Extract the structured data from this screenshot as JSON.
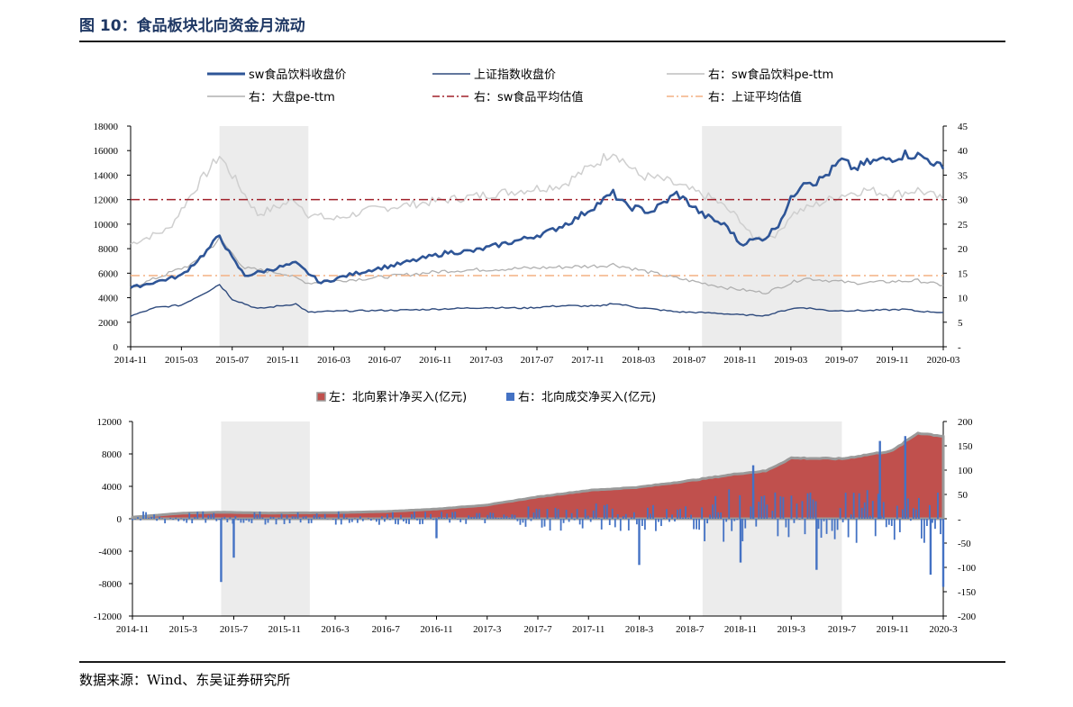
{
  "figure": {
    "title": "图 10：食品板块北向资金月流动",
    "source": "数据来源：Wind、东吴证券研究所"
  },
  "colors": {
    "sw_close": "#2e5597",
    "sh_close": "#2e4a7d",
    "sw_pe": "#cfcfcf",
    "mkt_pe": "#b0b0b0",
    "sw_avg": "#a0202a",
    "sh_avg": "#f4b183",
    "cum_fill": "#c0504d",
    "cum_edge": "#9a9a9a",
    "daily_bar": "#4472c4",
    "shade": "#ececec"
  },
  "chart_data": [
    {
      "type": "line",
      "legend": [
        {
          "name": "sw食品饮料收盘价",
          "style": "thick-line"
        },
        {
          "name": "上证指数收盘价",
          "style": "line"
        },
        {
          "name": "右：sw食品饮料pe-ttm",
          "style": "light-line"
        },
        {
          "name": "右：大盘pe-ttm",
          "style": "light-line"
        },
        {
          "name": "右：sw食品平均估值",
          "style": "dash-dot"
        },
        {
          "name": "右：上证平均估值",
          "style": "dash-dot"
        }
      ],
      "x_ticks": [
        "2014-11",
        "2015-03",
        "2015-07",
        "2015-11",
        "2016-03",
        "2016-07",
        "2016-11",
        "2017-03",
        "2017-07",
        "2017-11",
        "2018-03",
        "2018-07",
        "2018-11",
        "2019-03",
        "2019-07",
        "2019-11",
        "2020-03"
      ],
      "y_left_ticks": [
        "18000",
        "16000",
        "14000",
        "12000",
        "10000",
        "8000",
        "6000",
        "4000",
        "2000",
        "0"
      ],
      "y_right_ticks": [
        "45",
        "40",
        "35",
        "30",
        "25",
        "20",
        "15",
        "10",
        "5",
        "-"
      ],
      "ylim_left": [
        0,
        18000
      ],
      "ylim_right": [
        0,
        45
      ],
      "shaded_periods": [
        [
          "2015-06",
          "2016-01"
        ],
        [
          "2018-08",
          "2019-07"
        ]
      ],
      "series": [
        {
          "name": "sw食品饮料收盘价",
          "axis": "left",
          "x": [
            "2014-11",
            "2015-01",
            "2015-03",
            "2015-05",
            "2015-06",
            "2015-07",
            "2015-08",
            "2015-10",
            "2015-12",
            "2016-01",
            "2016-02",
            "2016-04",
            "2016-06",
            "2016-08",
            "2016-10",
            "2016-12",
            "2017-02",
            "2017-04",
            "2017-06",
            "2017-08",
            "2017-10",
            "2017-12",
            "2018-01",
            "2018-02",
            "2018-04",
            "2018-06",
            "2018-07",
            "2018-08",
            "2018-10",
            "2018-11",
            "2018-12",
            "2019-01",
            "2019-02",
            "2019-03",
            "2019-04",
            "2019-05",
            "2019-06",
            "2019-07",
            "2019-08",
            "2019-09",
            "2019-10",
            "2019-11",
            "2019-12",
            "2020-01",
            "2020-02",
            "2020-03"
          ],
          "values": [
            4800,
            5300,
            5800,
            7800,
            9100,
            7200,
            5800,
            6300,
            6800,
            6000,
            5200,
            5800,
            6300,
            6700,
            7200,
            7700,
            7800,
            8300,
            8800,
            9400,
            10400,
            11800,
            12500,
            11500,
            11000,
            12500,
            11700,
            10800,
            9800,
            8400,
            8700,
            8900,
            10000,
            12000,
            13600,
            13400,
            14200,
            15200,
            14500,
            15000,
            15200,
            15400,
            15700,
            15600,
            15200,
            14500
          ]
        },
        {
          "name": "上证指数收盘价",
          "axis": "left",
          "x": [
            "2014-11",
            "2015-01",
            "2015-03",
            "2015-05",
            "2015-06",
            "2015-07",
            "2015-09",
            "2015-12",
            "2016-01",
            "2016-03",
            "2016-06",
            "2016-09",
            "2016-12",
            "2017-03",
            "2017-06",
            "2017-09",
            "2017-12",
            "2018-01",
            "2018-03",
            "2018-06",
            "2018-09",
            "2018-11",
            "2019-01",
            "2019-03",
            "2019-04",
            "2019-06",
            "2019-09",
            "2019-12",
            "2020-01",
            "2020-03"
          ],
          "values": [
            2500,
            3200,
            3400,
            4500,
            5100,
            3900,
            3100,
            3500,
            2800,
            2900,
            2950,
            3000,
            3100,
            3200,
            3150,
            3350,
            3300,
            3550,
            3200,
            2850,
            2750,
            2600,
            2550,
            3100,
            3200,
            2950,
            2950,
            3050,
            2900,
            2800
          ]
        },
        {
          "name": "右：sw食品饮料pe-ttm",
          "axis": "right",
          "x": [
            "2014-11",
            "2015-02",
            "2015-04",
            "2015-06",
            "2015-07",
            "2015-09",
            "2015-11",
            "2015-12",
            "2016-01",
            "2016-03",
            "2016-06",
            "2016-09",
            "2016-12",
            "2017-03",
            "2017-06",
            "2017-09",
            "2017-12",
            "2018-01",
            "2018-03",
            "2018-05",
            "2018-07",
            "2018-09",
            "2018-11",
            "2018-12",
            "2019-02",
            "2019-03",
            "2019-05",
            "2019-07",
            "2019-09",
            "2019-11",
            "2020-01",
            "2020-03"
          ],
          "values": [
            21,
            24,
            32,
            39,
            35,
            27,
            29,
            30,
            27,
            26,
            28,
            29,
            30,
            31,
            32,
            33,
            38,
            40,
            35,
            34,
            32,
            30,
            26,
            22,
            23,
            27,
            29,
            31,
            32,
            31,
            32,
            30
          ]
        },
        {
          "name": "右：大盘pe-ttm",
          "axis": "right",
          "x": [
            "2014-11",
            "2015-02",
            "2015-04",
            "2015-06",
            "2015-08",
            "2015-11",
            "2016-01",
            "2016-06",
            "2016-12",
            "2017-06",
            "2017-12",
            "2018-01",
            "2018-06",
            "2018-10",
            "2019-01",
            "2019-04",
            "2019-08",
            "2020-01",
            "2020-03"
          ],
          "values": [
            12,
            15,
            17,
            22,
            16,
            15,
            13,
            14,
            15.5,
            16,
            16.5,
            16.8,
            14,
            12,
            11,
            14,
            13,
            13.5,
            12.5
          ]
        },
        {
          "name": "右：sw食品平均估值",
          "axis": "right",
          "values": [
            30
          ]
        },
        {
          "name": "右：上证平均估值",
          "axis": "right",
          "values": [
            14.5
          ]
        }
      ]
    },
    {
      "type": "bar",
      "legend": [
        {
          "name": "左：北向累计净买入(亿元)",
          "style": "area"
        },
        {
          "name": "右：北向成交净买入(亿元)",
          "style": "bar"
        }
      ],
      "x_ticks": [
        "2014-11",
        "2015-3",
        "2015-7",
        "2015-11",
        "2016-3",
        "2016-7",
        "2016-11",
        "2017-3",
        "2017-7",
        "2017-11",
        "2018-3",
        "2018-7",
        "2018-11",
        "2019-3",
        "2019-7",
        "2019-11",
        "2020-3"
      ],
      "y_left_ticks": [
        "12000",
        "8000",
        "4000",
        "0",
        "-4000",
        "-8000",
        "-12000"
      ],
      "y_right_ticks": [
        "200",
        "150",
        "100",
        "50",
        "-",
        "-50",
        "-100",
        "-150",
        "-200"
      ],
      "ylim_left": [
        -12000,
        12000
      ],
      "ylim_right": [
        -200,
        200
      ],
      "shaded_periods": [
        [
          "2015-06",
          "2016-01"
        ],
        [
          "2018-08",
          "2019-07"
        ]
      ],
      "series": [
        {
          "name": "左：北向累计净买入(亿元)",
          "axis": "left",
          "x": [
            "2014-11",
            "2015-03",
            "2015-06",
            "2015-10",
            "2016-03",
            "2016-07",
            "2016-11",
            "2017-03",
            "2017-07",
            "2017-11",
            "2018-03",
            "2018-07",
            "2018-11",
            "2019-01",
            "2019-03",
            "2019-07",
            "2019-11",
            "2020-01",
            "2020-03"
          ],
          "values": [
            200,
            700,
            800,
            700,
            750,
            900,
            1200,
            1700,
            2700,
            3500,
            3900,
            4700,
            5600,
            5900,
            7500,
            7400,
            8400,
            10600,
            10200
          ]
        },
        {
          "name": "右：北向成交净买入(亿元)",
          "axis": "right",
          "x": [
            "2015-06",
            "2015-07",
            "2016-11",
            "2018-03",
            "2018-11",
            "2018-12",
            "2019-05",
            "2019-10",
            "2019-12",
            "2020-02",
            "2020-03"
          ],
          "values": [
            -130,
            -80,
            -40,
            -95,
            -90,
            110,
            -105,
            160,
            170,
            -115,
            -140
          ]
        }
      ]
    }
  ]
}
